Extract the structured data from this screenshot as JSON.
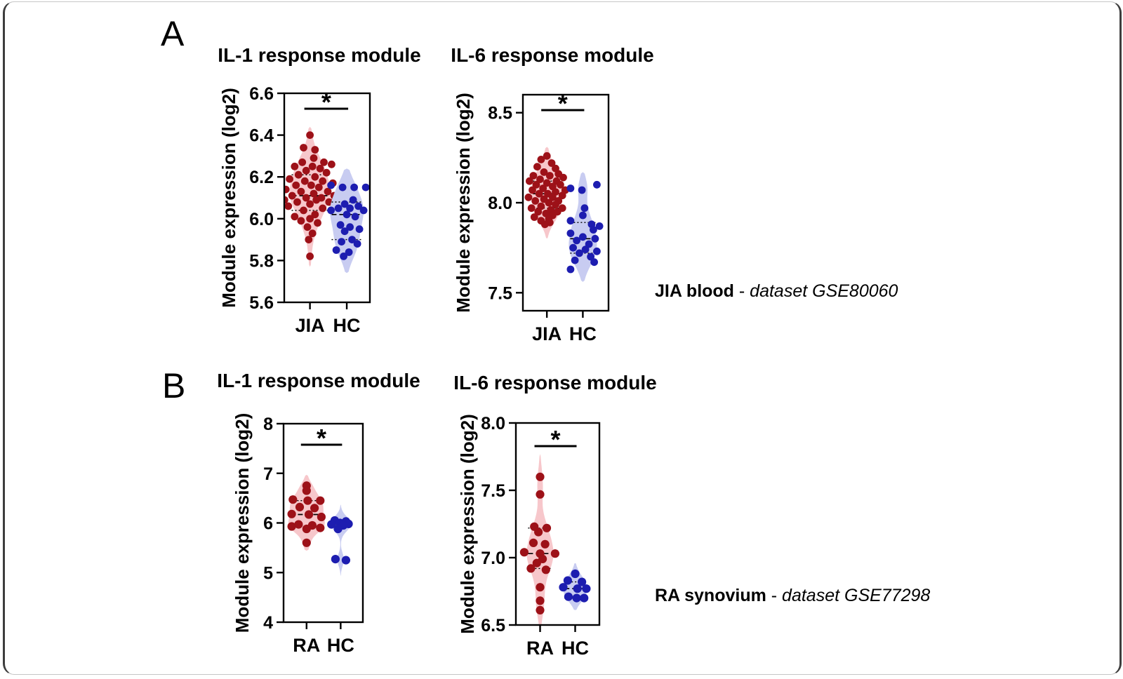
{
  "page": {
    "panel_a": "A",
    "panel_b": "B",
    "caption_a": {
      "label": "JIA blood",
      "sep": " - ",
      "dataset": "dataset GSE80060"
    },
    "caption_b": {
      "label": "RA synovium",
      "sep": " - ",
      "dataset": "dataset GSE77298"
    }
  },
  "colors": {
    "case_dot": "#9d1118",
    "case_violin": "#f7c7cb",
    "control_dot": "#1d1db0",
    "control_violin": "#c8ccf1",
    "axis": "#000000"
  },
  "chart_data": [
    {
      "id": "a-il1",
      "type": "violin-scatter",
      "panel": "A",
      "title": "IL-1 response module",
      "ylabel": "Module expression (log2)",
      "ylim": [
        5.6,
        6.6
      ],
      "yticks": [
        6.6,
        6.4,
        6.2,
        6.0,
        5.8,
        5.6
      ],
      "ytick_labels": [
        "6.6",
        "6.4",
        "6.2",
        "6.0",
        "5.8",
        "5.6"
      ],
      "significance": "*",
      "groups": [
        {
          "label": "JIA",
          "role": "case",
          "bw": 0.055,
          "halfwidth": 29,
          "violin_range": [
            5.77,
            6.44
          ],
          "median": 6.11,
          "q1": 6.04,
          "q3": 6.21,
          "points": [
            [
              0.0,
              6.4
            ],
            [
              -0.25,
              6.34
            ],
            [
              0.2,
              6.33
            ],
            [
              0.15,
              6.29
            ],
            [
              0.55,
              6.27
            ],
            [
              -0.3,
              6.27
            ],
            [
              0.85,
              6.26
            ],
            [
              -0.6,
              6.25
            ],
            [
              0.1,
              6.25
            ],
            [
              0.4,
              6.24
            ],
            [
              -0.15,
              6.23
            ],
            [
              0.65,
              6.22
            ],
            [
              -0.45,
              6.21
            ],
            [
              0.2,
              6.2
            ],
            [
              -0.8,
              6.19
            ],
            [
              0.5,
              6.18
            ],
            [
              -0.2,
              6.18
            ],
            [
              0.9,
              6.17
            ],
            [
              0.05,
              6.16
            ],
            [
              -0.55,
              6.16
            ],
            [
              0.35,
              6.15
            ],
            [
              -0.95,
              6.14
            ],
            [
              0.7,
              6.13
            ],
            [
              -0.35,
              6.13
            ],
            [
              0.15,
              6.12
            ],
            [
              0.95,
              6.11
            ],
            [
              -0.7,
              6.11
            ],
            [
              0.45,
              6.1
            ],
            [
              -0.15,
              6.1
            ],
            [
              -1.0,
              6.09
            ],
            [
              0.25,
              6.09
            ],
            [
              0.75,
              6.08
            ],
            [
              -0.5,
              6.08
            ],
            [
              0.0,
              6.07
            ],
            [
              -0.85,
              6.06
            ],
            [
              0.5,
              6.05
            ],
            [
              -0.25,
              6.04
            ],
            [
              0.2,
              6.02
            ],
            [
              -0.6,
              6.01
            ],
            [
              0.0,
              6.0
            ],
            [
              -0.35,
              5.99
            ],
            [
              0.3,
              5.98
            ],
            [
              -0.1,
              5.96
            ],
            [
              0.1,
              5.93
            ],
            [
              -0.05,
              5.9
            ],
            [
              0.0,
              5.82
            ]
          ]
        },
        {
          "label": "HC",
          "role": "control",
          "bw": 0.06,
          "halfwidth": 24,
          "violin_range": [
            5.74,
            6.24
          ],
          "median": 6.02,
          "q1": 5.9,
          "q3": 6.08,
          "points": [
            [
              -0.75,
              6.16
            ],
            [
              -0.2,
              6.15
            ],
            [
              0.35,
              6.15
            ],
            [
              0.9,
              6.15
            ],
            [
              0.3,
              6.09
            ],
            [
              -0.1,
              6.07
            ],
            [
              0.55,
              6.06
            ],
            [
              -0.4,
              6.05
            ],
            [
              0.15,
              6.05
            ],
            [
              -0.75,
              6.04
            ],
            [
              0.8,
              6.04
            ],
            [
              0.0,
              6.02
            ],
            [
              0.4,
              6.01
            ],
            [
              -0.3,
              5.97
            ],
            [
              0.15,
              5.96
            ],
            [
              0.6,
              5.95
            ],
            [
              -0.1,
              5.94
            ],
            [
              0.25,
              5.9
            ],
            [
              -0.25,
              5.89
            ],
            [
              0.5,
              5.88
            ],
            [
              -0.5,
              5.85
            ],
            [
              0.1,
              5.84
            ],
            [
              -0.15,
              5.82
            ]
          ]
        }
      ]
    },
    {
      "id": "a-il6",
      "type": "violin-scatter",
      "panel": "A",
      "title": "IL-6 response module",
      "ylabel": "Module expression (log2)",
      "ylim": [
        7.4,
        8.6
      ],
      "yticks": [
        8.5,
        8.0,
        7.5
      ],
      "ytick_labels": [
        "8.5",
        "8.0",
        "7.5"
      ],
      "significance": "*",
      "groups": [
        {
          "label": "JIA",
          "role": "case",
          "bw": 0.05,
          "halfwidth": 22,
          "violin_range": [
            7.8,
            8.31
          ],
          "median": 8.05,
          "q1": 7.97,
          "q3": 8.12,
          "points": [
            [
              0.0,
              8.26
            ],
            [
              -0.3,
              8.24
            ],
            [
              0.25,
              8.22
            ],
            [
              -0.5,
              8.2
            ],
            [
              0.45,
              8.19
            ],
            [
              -0.15,
              8.17
            ],
            [
              0.6,
              8.16
            ],
            [
              -0.7,
              8.15
            ],
            [
              0.15,
              8.15
            ],
            [
              0.85,
              8.14
            ],
            [
              -0.35,
              8.13
            ],
            [
              0.5,
              8.12
            ],
            [
              -0.9,
              8.12
            ],
            [
              0.0,
              8.11
            ],
            [
              0.7,
              8.1
            ],
            [
              -0.55,
              8.1
            ],
            [
              0.3,
              8.09
            ],
            [
              -0.2,
              8.08
            ],
            [
              0.95,
              8.07
            ],
            [
              -0.75,
              8.07
            ],
            [
              0.45,
              8.06
            ],
            [
              0.05,
              8.05
            ],
            [
              -0.4,
              8.05
            ],
            [
              0.8,
              8.04
            ],
            [
              -0.95,
              8.03
            ],
            [
              0.3,
              8.03
            ],
            [
              -0.15,
              8.02
            ],
            [
              0.6,
              8.01
            ],
            [
              -0.6,
              8.01
            ],
            [
              0.1,
              8.0
            ],
            [
              0.45,
              7.99
            ],
            [
              -0.3,
              7.98
            ],
            [
              0.8,
              7.97
            ],
            [
              -0.8,
              7.97
            ],
            [
              0.2,
              7.96
            ],
            [
              -0.45,
              7.95
            ],
            [
              0.55,
              7.95
            ],
            [
              -0.05,
              7.94
            ],
            [
              0.3,
              7.93
            ],
            [
              -0.65,
              7.92
            ],
            [
              0.1,
              7.91
            ],
            [
              -0.3,
              7.9
            ],
            [
              0.15,
              7.89
            ],
            [
              -0.1,
              7.88
            ]
          ]
        },
        {
          "label": "HC",
          "role": "control",
          "bw": 0.06,
          "halfwidth": 20,
          "violin_range": [
            7.56,
            8.17
          ],
          "median": 7.8,
          "q1": 7.72,
          "q3": 7.89,
          "points": [
            [
              0.8,
              8.1
            ],
            [
              -0.7,
              8.08
            ],
            [
              -0.05,
              8.07
            ],
            [
              0.1,
              7.97
            ],
            [
              0.0,
              7.93
            ],
            [
              -0.7,
              7.9
            ],
            [
              0.5,
              7.88
            ],
            [
              0.95,
              7.87
            ],
            [
              0.6,
              7.85
            ],
            [
              -0.7,
              7.83
            ],
            [
              0.0,
              7.81
            ],
            [
              0.7,
              7.8
            ],
            [
              -0.35,
              7.79
            ],
            [
              0.35,
              7.77
            ],
            [
              -0.55,
              7.75
            ],
            [
              0.15,
              7.74
            ],
            [
              0.8,
              7.73
            ],
            [
              -0.2,
              7.72
            ],
            [
              0.45,
              7.7
            ],
            [
              -0.45,
              7.68
            ],
            [
              0.65,
              7.67
            ],
            [
              -0.7,
              7.63
            ]
          ]
        }
      ]
    },
    {
      "id": "b-il1",
      "type": "violin-scatter",
      "panel": "B",
      "title": "IL-1 response module",
      "ylabel": "Module expression (log2)",
      "ylim": [
        4,
        8
      ],
      "yticks": [
        8,
        7,
        6,
        5,
        4
      ],
      "ytick_labels": [
        "8",
        "7",
        "6",
        "5",
        "4"
      ],
      "significance": "*",
      "groups": [
        {
          "label": "RA",
          "role": "case",
          "bw": 0.14,
          "halfwidth": 26,
          "violin_range": [
            5.44,
            6.97
          ],
          "median": 6.17,
          "q1": 5.94,
          "q3": 6.45,
          "points": [
            [
              0.0,
              6.75
            ],
            [
              0.0,
              6.65
            ],
            [
              -0.6,
              6.47
            ],
            [
              0.05,
              6.45
            ],
            [
              0.6,
              6.45
            ],
            [
              -0.3,
              6.32
            ],
            [
              0.35,
              6.3
            ],
            [
              -0.65,
              6.18
            ],
            [
              0.1,
              6.17
            ],
            [
              0.65,
              6.12
            ],
            [
              -0.35,
              5.97
            ],
            [
              0.25,
              5.95
            ],
            [
              -0.65,
              5.93
            ],
            [
              0.6,
              5.9
            ],
            [
              0.0,
              5.88
            ],
            [
              0.0,
              5.6
            ]
          ]
        },
        {
          "label": "HC",
          "role": "control",
          "bw": 0.13,
          "halfwidth": 15,
          "violin_range": [
            4.93,
            6.37
          ],
          "median": 5.97,
          "q1": 5.91,
          "q3": 6.02,
          "points": [
            [
              -0.45,
              6.05
            ],
            [
              0.4,
              6.03
            ],
            [
              -0.05,
              6.0
            ],
            [
              0.6,
              5.98
            ],
            [
              -0.7,
              5.97
            ],
            [
              0.2,
              5.95
            ],
            [
              -0.2,
              5.88
            ],
            [
              -0.4,
              5.27
            ],
            [
              0.4,
              5.25
            ]
          ]
        }
      ]
    },
    {
      "id": "b-il6",
      "type": "violin-scatter",
      "panel": "B",
      "title": "IL-6 response module",
      "ylabel": "Module expression (log2)",
      "ylim": [
        6.5,
        8.0
      ],
      "yticks": [
        8.0,
        7.5,
        7.0,
        6.5
      ],
      "ytick_labels": [
        "8.0",
        "7.5",
        "7.0",
        "6.5"
      ],
      "significance": "*",
      "groups": [
        {
          "label": "RA",
          "role": "case",
          "bw": 0.1,
          "halfwidth": 19,
          "violin_range": [
            6.49,
            7.77
          ],
          "median": 7.03,
          "q1": 6.92,
          "q3": 7.22,
          "points": [
            [
              0.0,
              7.6
            ],
            [
              0.0,
              7.47
            ],
            [
              -0.35,
              7.23
            ],
            [
              0.4,
              7.22
            ],
            [
              -0.1,
              7.19
            ],
            [
              -0.4,
              7.11
            ],
            [
              0.3,
              7.1
            ],
            [
              -0.95,
              7.04
            ],
            [
              0.0,
              7.03
            ],
            [
              0.9,
              7.03
            ],
            [
              0.15,
              6.99
            ],
            [
              -0.2,
              6.96
            ],
            [
              -0.55,
              6.92
            ],
            [
              0.35,
              6.91
            ],
            [
              0.0,
              6.78
            ],
            [
              0.0,
              6.68
            ],
            [
              0.0,
              6.61
            ]
          ]
        },
        {
          "label": "HC",
          "role": "control",
          "bw": 0.05,
          "halfwidth": 17,
          "violin_range": [
            6.61,
            6.96
          ],
          "median": 6.77,
          "q1": 6.7,
          "q3": 6.82,
          "points": [
            [
              0.0,
              6.88
            ],
            [
              -0.5,
              6.83
            ],
            [
              0.45,
              6.82
            ],
            [
              -0.8,
              6.78
            ],
            [
              0.15,
              6.77
            ],
            [
              0.75,
              6.77
            ],
            [
              -0.45,
              6.71
            ],
            [
              0.1,
              6.7
            ],
            [
              0.6,
              6.7
            ]
          ]
        }
      ]
    }
  ]
}
